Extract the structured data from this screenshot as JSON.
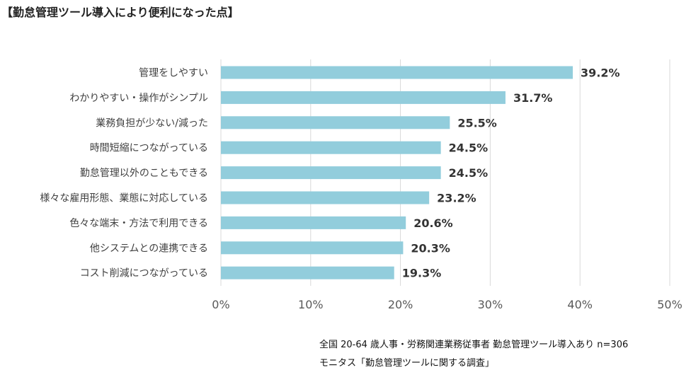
{
  "chart_data": {
    "type": "bar",
    "orientation": "horizontal",
    "title": "【勤怠管理ツール導入により便利になった点】",
    "categories": [
      "管理をしやすい",
      "わかりやすい・操作がシンプル",
      "業務負担が少ない/減った",
      "時間短縮につながっている",
      "勤怠管理以外のこともできる",
      "様々な雇用形態、業態に対応している",
      "色々な端末・方法で利用できる",
      "他システムとの連携できる",
      "コスト削減につながっている"
    ],
    "values": [
      39.2,
      31.7,
      25.5,
      24.5,
      24.5,
      23.2,
      20.6,
      20.3,
      19.3
    ],
    "value_labels": [
      "39.2%",
      "31.7%",
      "25.5%",
      "24.5%",
      "24.5%",
      "23.2%",
      "20.6%",
      "20.3%",
      "19.3%"
    ],
    "xlim": [
      0,
      50
    ],
    "x_ticks": [
      0,
      10,
      20,
      30,
      40,
      50
    ],
    "x_tick_labels": [
      "0%",
      "10%",
      "20%",
      "30%",
      "40%",
      "50%"
    ],
    "grid": true,
    "bar_color": "#92CDDC",
    "grid_color": "#D9D9D9",
    "xlabel": "",
    "ylabel": ""
  },
  "footnotes": {
    "line1": "全国 20-64 歳人事・労務関連業務従事者 勤怠管理ツール導入あり n=306",
    "line2": "モニタス「勤怠管理ツールに関する調査」"
  }
}
